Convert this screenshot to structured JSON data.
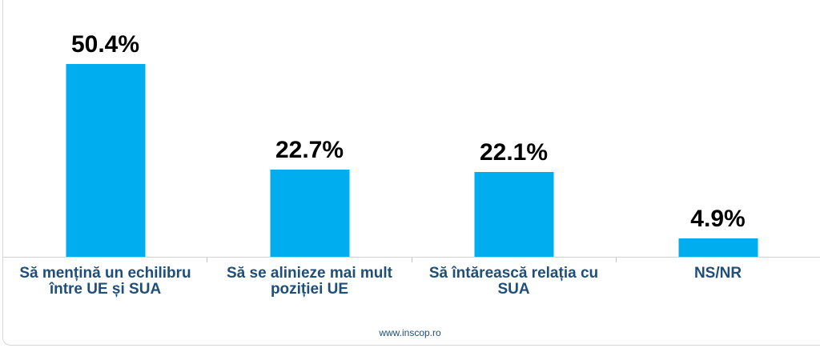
{
  "chart_data": {
    "type": "bar",
    "categories": [
      "Să mențină un echilibru între UE și SUA",
      "Să se alinieze mai mult poziției UE",
      "Să întărească relația cu SUA",
      "NS/NR"
    ],
    "values": [
      50.4,
      22.7,
      22.1,
      4.9
    ],
    "value_labels": [
      "50.4%",
      "22.7%",
      "22.1%",
      "4.9%"
    ],
    "title": "",
    "xlabel": "",
    "ylabel": "",
    "ylim": [
      0,
      67
    ],
    "grid": false,
    "legend": null,
    "bar_color": "#00aeef",
    "value_label_color": "#000000",
    "category_label_color": "#1f4e79",
    "axis_line_color": "#d3d3d3"
  },
  "footer": {
    "website": "www.inscop.ro"
  }
}
